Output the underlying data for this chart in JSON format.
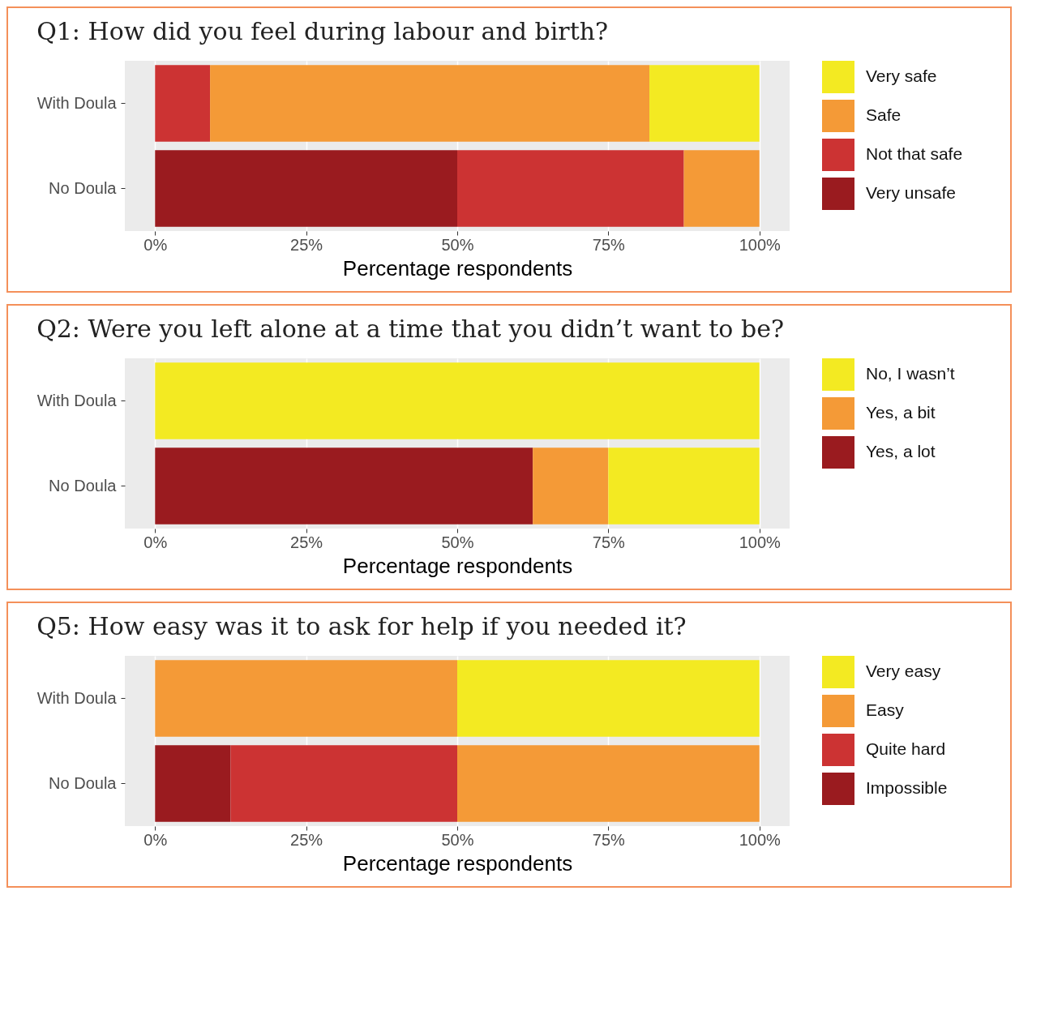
{
  "chart_data": [
    {
      "type": "bar",
      "orientation": "horizontal",
      "stacked": true,
      "title": "Q1: How did you feel during labour and birth?",
      "xlabel": "Percentage respondents",
      "categories": [
        "With Doula",
        "No Doula"
      ],
      "series": [
        {
          "name": "Very unsafe",
          "color": "#9a1b1f",
          "values": [
            0,
            50
          ]
        },
        {
          "name": "Not that safe",
          "color": "#cc3333",
          "values": [
            9.1,
            37.5
          ]
        },
        {
          "name": "Safe",
          "color": "#f49a37",
          "values": [
            72.7,
            12.5
          ]
        },
        {
          "name": "Very safe",
          "color": "#f3ea22",
          "values": [
            18.2,
            0
          ]
        }
      ],
      "xlim": [
        -5,
        105
      ],
      "xticks": [
        {
          "value": 0,
          "label": "0%"
        },
        {
          "value": 25,
          "label": "25%"
        },
        {
          "value": 50,
          "label": "50%"
        },
        {
          "value": 75,
          "label": "75%"
        },
        {
          "value": 100,
          "label": "100%"
        }
      ],
      "grid": "x",
      "legend": "right"
    },
    {
      "type": "bar",
      "orientation": "horizontal",
      "stacked": true,
      "title": "Q2: Were you left alone at a time that you didn’t want to be?",
      "xlabel": "Percentage respondents",
      "categories": [
        "With Doula",
        "No Doula"
      ],
      "series": [
        {
          "name": "Yes, a lot",
          "color": "#9a1b1f",
          "values": [
            0,
            62.5
          ]
        },
        {
          "name": "Yes, a bit",
          "color": "#f49a37",
          "values": [
            0,
            12.5
          ]
        },
        {
          "name": "No, I wasn’t",
          "color": "#f3ea22",
          "values": [
            100,
            25
          ]
        }
      ],
      "xlim": [
        -5,
        105
      ],
      "xticks": [
        {
          "value": 0,
          "label": "0%"
        },
        {
          "value": 25,
          "label": "25%"
        },
        {
          "value": 50,
          "label": "50%"
        },
        {
          "value": 75,
          "label": "75%"
        },
        {
          "value": 100,
          "label": "100%"
        }
      ],
      "grid": "x",
      "legend": "right"
    },
    {
      "type": "bar",
      "orientation": "horizontal",
      "stacked": true,
      "title": "Q5: How easy was it to ask for help if you needed it?",
      "xlabel": "Percentage respondents",
      "categories": [
        "With Doula",
        "No Doula"
      ],
      "series": [
        {
          "name": "Impossible",
          "color": "#9a1b1f",
          "values": [
            0,
            12.5
          ]
        },
        {
          "name": "Quite hard",
          "color": "#cc3333",
          "values": [
            0,
            37.5
          ]
        },
        {
          "name": "Easy",
          "color": "#f49a37",
          "values": [
            50,
            50
          ]
        },
        {
          "name": "Very easy",
          "color": "#f3ea22",
          "values": [
            50,
            0
          ]
        }
      ],
      "xlim": [
        -5,
        105
      ],
      "xticks": [
        {
          "value": 0,
          "label": "0%"
        },
        {
          "value": 25,
          "label": "25%"
        },
        {
          "value": 50,
          "label": "50%"
        },
        {
          "value": 75,
          "label": "75%"
        },
        {
          "value": 100,
          "label": "100%"
        }
      ],
      "grid": "x",
      "legend": "right"
    }
  ]
}
